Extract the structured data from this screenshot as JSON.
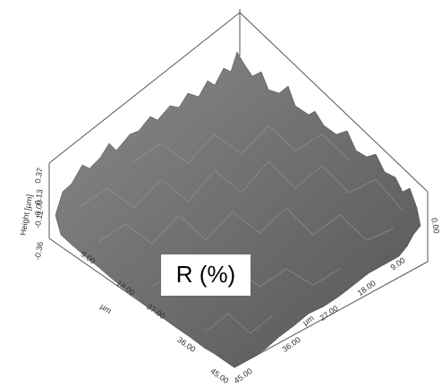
{
  "figure": {
    "label": "R (%)",
    "x_axis": {
      "unit": "µm",
      "ticks": [
        "9.00",
        "18.00",
        "27.00",
        "36.00",
        "45.00"
      ]
    },
    "y_axis": {
      "unit": "µm",
      "ticks": [
        "9.00",
        "18.00",
        "27.00",
        "36.00",
        "45.00"
      ]
    },
    "z_axis": {
      "title": "Height [µm]",
      "ticks": [
        "0.37",
        "0.13",
        "0.00",
        "-0.11",
        "-0.36"
      ]
    },
    "z_axis_right": {
      "ticks": [
        "0.00"
      ]
    }
  }
}
